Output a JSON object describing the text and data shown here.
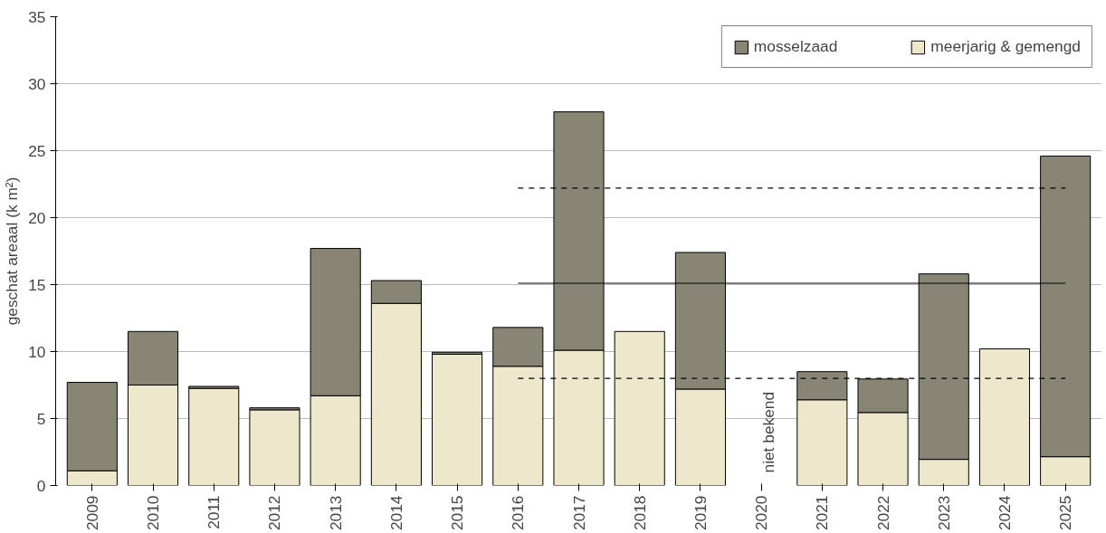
{
  "chart_data": {
    "type": "bar",
    "stacked": true,
    "ylabel": "geschat areaal (k m²)",
    "categories": [
      "2009",
      "2010",
      "2011",
      "2012",
      "2013",
      "2014",
      "2015",
      "2016",
      "2017",
      "2018",
      "2019",
      "2020",
      "2021",
      "2022",
      "2023",
      "2024",
      "2025"
    ],
    "series": [
      {
        "name": "meerjarig & gemengd",
        "color": "#ede7cc",
        "values": [
          1.1,
          7.5,
          7.25,
          5.65,
          6.7,
          13.6,
          9.8,
          8.9,
          10.1,
          11.5,
          7.2,
          null,
          6.4,
          5.45,
          1.95,
          10.2,
          2.15
        ]
      },
      {
        "name": "mosselzaad",
        "color": "#898575",
        "values": [
          6.6,
          4.0,
          0.15,
          0.15,
          11.0,
          1.7,
          0.15,
          2.9,
          17.8,
          null,
          10.2,
          null,
          2.1,
          2.5,
          13.85,
          null,
          22.45
        ]
      },
      {
        "type": "line",
        "color": "#000000",
        "line_style": "solid",
        "values": [
          null,
          null,
          null,
          null,
          null,
          null,
          null,
          15.1,
          15.1,
          15.1,
          15.1,
          15.1,
          15.1,
          15.1,
          15.1,
          15.1,
          15.1
        ]
      },
      {
        "type": "line",
        "color": "#000000",
        "line_style": "dashed",
        "values": [
          null,
          null,
          null,
          null,
          null,
          null,
          null,
          22.2,
          22.2,
          22.2,
          22.2,
          22.2,
          22.2,
          22.2,
          22.2,
          22.2,
          22.2
        ]
      },
      {
        "type": "line",
        "color": "#000000",
        "line_style": "dashed",
        "values": [
          null,
          null,
          null,
          null,
          null,
          null,
          null,
          8.0,
          8.0,
          8.0,
          8.0,
          8.0,
          8.0,
          8.0,
          8.0,
          8.0,
          8.0
        ]
      }
    ],
    "ylim": [
      0,
      35
    ],
    "yticks": [
      0,
      5,
      10,
      15,
      20,
      25,
      30,
      35
    ],
    "grid": "y",
    "legend": "top right",
    "annotations": [
      "niet bekend"
    ]
  }
}
